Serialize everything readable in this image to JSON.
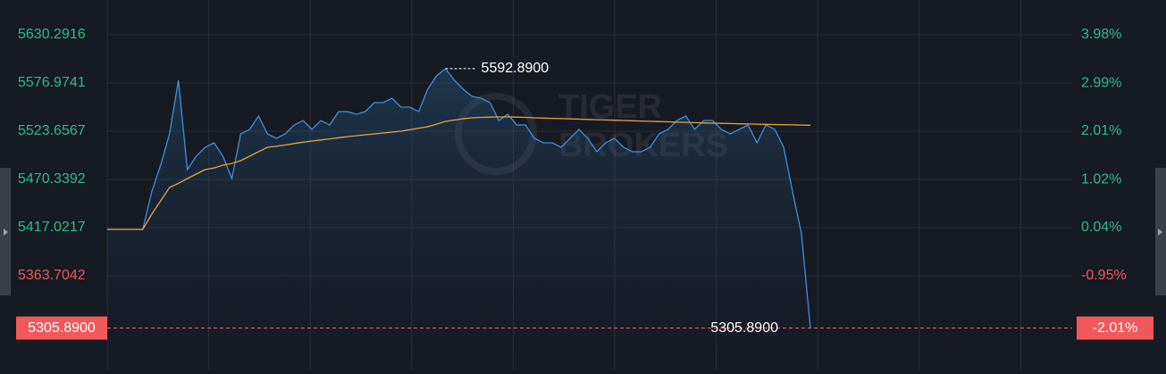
{
  "chart_data": {
    "type": "line",
    "watermark": [
      "TIGER",
      "BROKERS"
    ],
    "ylim": [
      5260.03,
      5668.8
    ],
    "yticks": [
      5630.2916,
      5576.9741,
      5523.6567,
      5470.3392,
      5417.0217,
      5363.7042
    ],
    "y2lim": [
      -2.867,
      4.692
    ],
    "y2ticks": [
      {
        "value": 3.98,
        "label": "3.98%"
      },
      {
        "value": 2.99,
        "label": "2.99%"
      },
      {
        "value": 2.01,
        "label": "2.01%"
      },
      {
        "value": 1.02,
        "label": "1.02%"
      },
      {
        "value": 0.04,
        "label": "0.04%"
      },
      {
        "value": -0.95,
        "label": "-0.95%"
      }
    ],
    "grid": true,
    "up_color": "#2ebd85",
    "down_color": "#f0585a",
    "high_label": "5592.8900",
    "current_price_label": "5305.8900",
    "current_change_label": "-2.01%",
    "series": [
      {
        "color": "#3d8fe0",
        "values": [
          5415.0,
          5415.0,
          5415.0,
          5415.0,
          5415.0,
          5456.5,
          5486.1,
          5520.7,
          5579.9,
          5481.2,
          5496.0,
          5505.9,
          5510.8,
          5496.0,
          5471.3,
          5520.7,
          5525.6,
          5540.4,
          5520.7,
          5515.8,
          5520.7,
          5530.6,
          5535.5,
          5525.6,
          5535.5,
          5530.6,
          5545.4,
          5545.4,
          5542.4,
          5545.4,
          5555.3,
          5555.3,
          5560.2,
          5550.3,
          5550.3,
          5545.4,
          5570.1,
          5584.9,
          5592.89,
          5579.9,
          5570.1,
          5562.2,
          5560.2,
          5555.3,
          5535.5,
          5542.4,
          5530.6,
          5530.6,
          5515.8,
          5510.8,
          5510.8,
          5505.9,
          5515.8,
          5525.6,
          5515.8,
          5500.9,
          5510.8,
          5515.8,
          5505.9,
          5500.9,
          5500.9,
          5505.9,
          5520.7,
          5525.6,
          5535.5,
          5540.4,
          5525.6,
          5535.5,
          5535.5,
          5525.6,
          5520.7,
          5525.6,
          5530.6,
          5510.8,
          5530.6,
          5525.6,
          5505.9,
          5456.5,
          5410.1,
          5305.89
        ]
      },
      {
        "color": "#e8a33d",
        "values": [
          5415.0,
          5415.0,
          5415.0,
          5415.0,
          5415.0,
          5431.8,
          5446.6,
          5461.5,
          5466,
          5471.3,
          5476.3,
          5481.2,
          5483,
          5486.1,
          5488,
          5491.1,
          5496,
          5501,
          5505.9,
          5507,
          5508.5,
          5510,
          5511.5,
          5512.8,
          5514,
          5515.2,
          5516.4,
          5517.6,
          5518.7,
          5519.7,
          5520.7,
          5521.7,
          5522.7,
          5523.7,
          5525.3,
          5527,
          5528.6,
          5531.5,
          5534.5,
          5536,
          5537.5,
          5538.5,
          5539,
          5539.3,
          5539.5,
          5539.5,
          5539.3,
          5539,
          5538.5,
          5538.2,
          5537.9,
          5537.6,
          5537.3,
          5537,
          5536.7,
          5536.4,
          5536.1,
          5535.8,
          5535.5,
          5535.2,
          5534.9,
          5534.6,
          5534.3,
          5534,
          5533.7,
          5533.4,
          5533.1,
          5532.8,
          5532.5,
          5532.3,
          5532.1,
          5531.9,
          5531.7,
          5531.5,
          5531.3,
          5531.1,
          5530.9,
          5530.7,
          5530.5,
          5530.3
        ]
      }
    ]
  }
}
